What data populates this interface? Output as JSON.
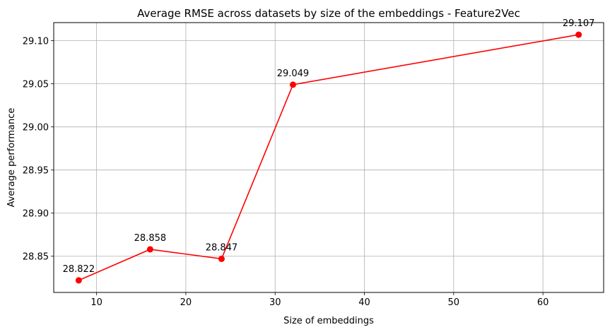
{
  "chart_data": {
    "type": "line",
    "title": "Average RMSE across datasets by size of the embeddings - Feature2Vec",
    "xlabel": "Size of embeddings",
    "ylabel": "Average performance",
    "xlim": [
      5.2,
      66.8
    ],
    "ylim": [
      28.808,
      29.121
    ],
    "xticks": [
      10,
      20,
      30,
      40,
      50,
      60
    ],
    "yticks": [
      28.85,
      28.9,
      28.95,
      29.0,
      29.05,
      29.1
    ],
    "ytick_labels": [
      "28.85",
      "28.90",
      "28.95",
      "29.00",
      "29.05",
      "29.10"
    ],
    "grid": true,
    "color": "#ff0000",
    "x": [
      8,
      16,
      24,
      32,
      64
    ],
    "y": [
      28.822,
      28.858,
      28.847,
      29.049,
      29.107
    ],
    "data_labels": [
      "28.822",
      "28.858",
      "28.847",
      "29.049",
      "29.107"
    ]
  }
}
